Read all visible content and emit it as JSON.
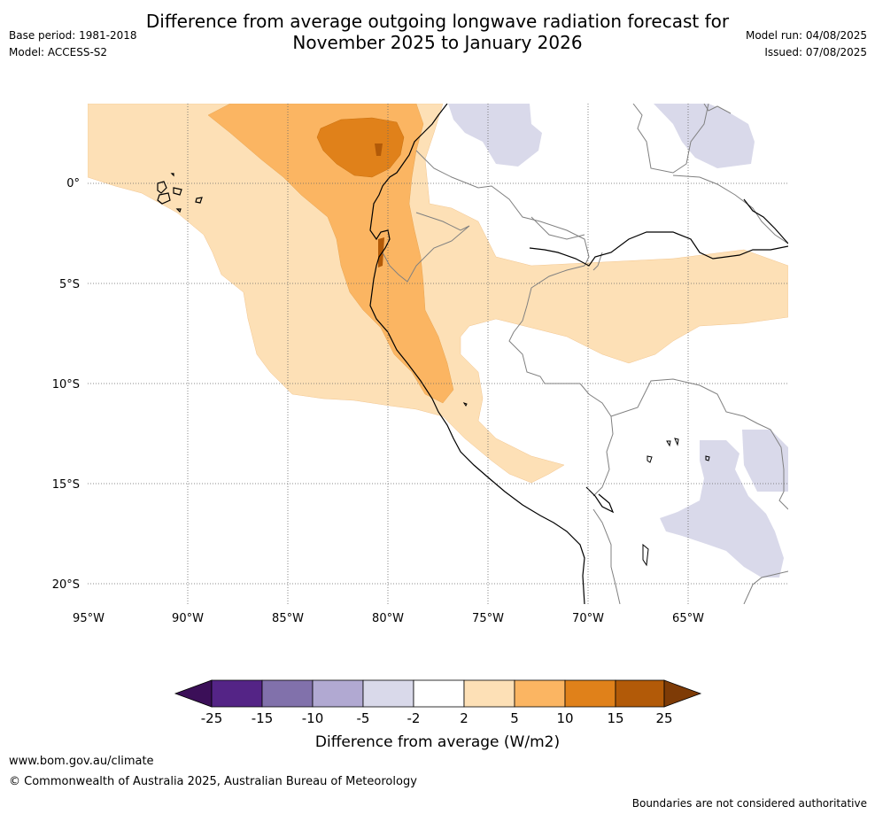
{
  "header": {
    "title_line1": "Difference from average outgoing longwave radiation forecast for",
    "title_line2": "November 2025 to January 2026",
    "base_period": "Base period: 1981-2018",
    "model": "Model: ACCESS-S2",
    "model_run": "Model run: 04/08/2025",
    "issued": "Issued: 07/08/2025"
  },
  "map": {
    "lon_labels": [
      "95°W",
      "90°W",
      "85°W",
      "80°W",
      "75°W",
      "70°W",
      "65°W"
    ],
    "lat_labels": [
      "0°",
      "5°S",
      "10°S",
      "15°S",
      "20°S"
    ],
    "extent": {
      "lon_min": -95,
      "lon_max": -60,
      "lat_min": -21,
      "lat_max": 4
    }
  },
  "legend": {
    "title": "Difference from average (W/m2)",
    "ticks": [
      "-25",
      "-15",
      "-10",
      "-5",
      "-2",
      "2",
      "5",
      "10",
      "15",
      "25"
    ],
    "colors": {
      "below_-25": "#3b0f58",
      "-25_-15": "#542486",
      "-15_-10": "#8171ab",
      "-10_-5": "#b1a9d2",
      "-5_-2": "#d9d9ea",
      "-2_2": "#ffffff",
      "2_5": "#fde0b6",
      "5_10": "#fbb562",
      "10_15": "#e0811a",
      "15_25": "#b25a08",
      "above_25": "#7e3b06"
    }
  },
  "footer": {
    "website": "www.bom.gov.au/climate",
    "copyright": "© Commonwealth of Australia 2025, Australian Bureau of Meteorology",
    "disclaimer": "Boundaries are not considered authoritative"
  }
}
